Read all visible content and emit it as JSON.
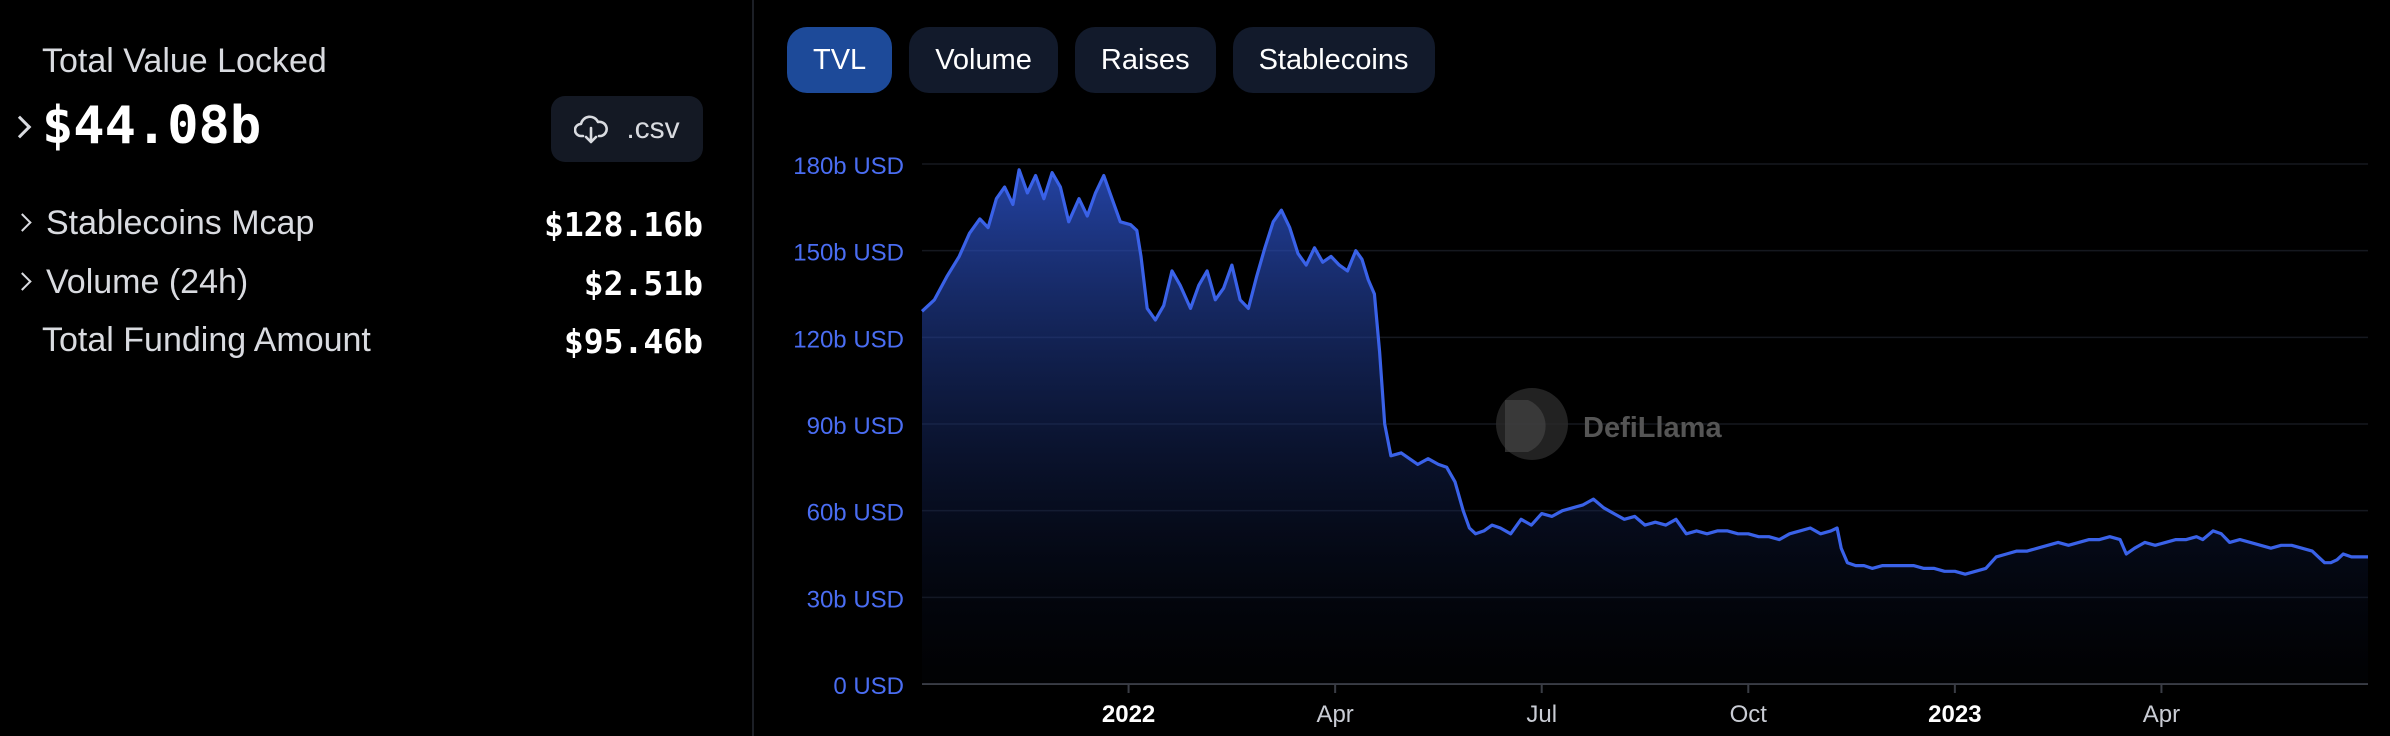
{
  "sidebar": {
    "tvl_label": "Total Value Locked",
    "tvl_value": "$44.08b",
    "csv_label": ".csv",
    "stats": [
      {
        "label": "Stablecoins Mcap",
        "value": "$128.16b",
        "expandable": true
      },
      {
        "label": "Volume (24h)",
        "value": "$2.51b",
        "expandable": true
      },
      {
        "label": "Total Funding Amount",
        "value": "$95.46b",
        "expandable": false
      }
    ]
  },
  "tabs": [
    {
      "label": "TVL",
      "active": true
    },
    {
      "label": "Volume",
      "active": false
    },
    {
      "label": "Raises",
      "active": false
    },
    {
      "label": "Stablecoins",
      "active": false
    }
  ],
  "watermark": "DefiLlama",
  "colors": {
    "line": "#3a62e8",
    "tick": "#4a6df2",
    "active_tab": "#1d4a99",
    "tab": "#121a2b"
  },
  "chart_data": {
    "type": "area",
    "ylabels": [
      "0 USD",
      "30b USD",
      "60b USD",
      "90b USD",
      "120b USD",
      "150b USD",
      "180b USD"
    ],
    "ylim": [
      0,
      180
    ],
    "xlim": [
      0,
      7000
    ],
    "xticks": [
      {
        "label": "2022",
        "x": 1000,
        "bold": true
      },
      {
        "label": "Apr",
        "x": 2000,
        "bold": false
      },
      {
        "label": "Jul",
        "x": 3000,
        "bold": false
      },
      {
        "label": "Oct",
        "x": 4000,
        "bold": false
      },
      {
        "label": "2023",
        "x": 5000,
        "bold": true
      },
      {
        "label": "Apr",
        "x": 6000,
        "bold": false
      }
    ],
    "series": [
      {
        "name": "TVL",
        "points": [
          [
            0,
            129
          ],
          [
            60,
            133
          ],
          [
            120,
            141
          ],
          [
            180,
            148
          ],
          [
            230,
            156
          ],
          [
            280,
            161
          ],
          [
            320,
            158
          ],
          [
            360,
            168
          ],
          [
            400,
            172
          ],
          [
            440,
            166
          ],
          [
            470,
            178
          ],
          [
            510,
            170
          ],
          [
            550,
            176
          ],
          [
            590,
            168
          ],
          [
            630,
            177
          ],
          [
            670,
            172
          ],
          [
            710,
            160
          ],
          [
            760,
            168
          ],
          [
            800,
            162
          ],
          [
            840,
            170
          ],
          [
            880,
            176
          ],
          [
            920,
            168
          ],
          [
            960,
            160
          ],
          [
            1010,
            159
          ],
          [
            1040,
            157
          ],
          [
            1060,
            148
          ],
          [
            1090,
            130
          ],
          [
            1130,
            126
          ],
          [
            1170,
            131
          ],
          [
            1210,
            143
          ],
          [
            1250,
            138
          ],
          [
            1300,
            130
          ],
          [
            1340,
            138
          ],
          [
            1380,
            143
          ],
          [
            1420,
            133
          ],
          [
            1460,
            137
          ],
          [
            1500,
            145
          ],
          [
            1540,
            133
          ],
          [
            1580,
            130
          ],
          [
            1620,
            141
          ],
          [
            1660,
            151
          ],
          [
            1700,
            160
          ],
          [
            1740,
            164
          ],
          [
            1780,
            158
          ],
          [
            1820,
            149
          ],
          [
            1860,
            145
          ],
          [
            1900,
            151
          ],
          [
            1940,
            146
          ],
          [
            1980,
            148
          ],
          [
            2020,
            145
          ],
          [
            2060,
            143
          ],
          [
            2100,
            150
          ],
          [
            2130,
            147
          ],
          [
            2160,
            140
          ],
          [
            2190,
            135
          ],
          [
            2215,
            115
          ],
          [
            2240,
            90
          ],
          [
            2270,
            79
          ],
          [
            2320,
            80
          ],
          [
            2360,
            78
          ],
          [
            2400,
            76
          ],
          [
            2450,
            78
          ],
          [
            2500,
            76
          ],
          [
            2540,
            75
          ],
          [
            2580,
            70
          ],
          [
            2620,
            60
          ],
          [
            2650,
            54
          ],
          [
            2680,
            52
          ],
          [
            2720,
            53
          ],
          [
            2760,
            55
          ],
          [
            2800,
            54
          ],
          [
            2850,
            52
          ],
          [
            2900,
            57
          ],
          [
            2950,
            55
          ],
          [
            3000,
            59
          ],
          [
            3050,
            58
          ],
          [
            3100,
            60
          ],
          [
            3150,
            61
          ],
          [
            3200,
            62
          ],
          [
            3250,
            64
          ],
          [
            3300,
            61
          ],
          [
            3350,
            59
          ],
          [
            3400,
            57
          ],
          [
            3450,
            58
          ],
          [
            3500,
            55
          ],
          [
            3550,
            56
          ],
          [
            3600,
            55
          ],
          [
            3650,
            57
          ],
          [
            3700,
            52
          ],
          [
            3750,
            53
          ],
          [
            3800,
            52
          ],
          [
            3850,
            53
          ],
          [
            3900,
            53
          ],
          [
            3950,
            52
          ],
          [
            4000,
            52
          ],
          [
            4050,
            51
          ],
          [
            4100,
            51
          ],
          [
            4150,
            50
          ],
          [
            4200,
            52
          ],
          [
            4250,
            53
          ],
          [
            4300,
            54
          ],
          [
            4350,
            52
          ],
          [
            4400,
            53
          ],
          [
            4430,
            54
          ],
          [
            4450,
            47
          ],
          [
            4480,
            42
          ],
          [
            4520,
            41
          ],
          [
            4560,
            41
          ],
          [
            4600,
            40
          ],
          [
            4650,
            41
          ],
          [
            4700,
            41
          ],
          [
            4750,
            41
          ],
          [
            4800,
            41
          ],
          [
            4850,
            40
          ],
          [
            4900,
            40
          ],
          [
            4950,
            39
          ],
          [
            5000,
            39
          ],
          [
            5050,
            38
          ],
          [
            5100,
            39
          ],
          [
            5150,
            40
          ],
          [
            5200,
            44
          ],
          [
            5250,
            45
          ],
          [
            5300,
            46
          ],
          [
            5350,
            46
          ],
          [
            5400,
            47
          ],
          [
            5450,
            48
          ],
          [
            5500,
            49
          ],
          [
            5550,
            48
          ],
          [
            5600,
            49
          ],
          [
            5650,
            50
          ],
          [
            5700,
            50
          ],
          [
            5750,
            51
          ],
          [
            5800,
            50
          ],
          [
            5830,
            45
          ],
          [
            5870,
            47
          ],
          [
            5920,
            49
          ],
          [
            5970,
            48
          ],
          [
            6020,
            49
          ],
          [
            6070,
            50
          ],
          [
            6120,
            50
          ],
          [
            6170,
            51
          ],
          [
            6200,
            50
          ],
          [
            6250,
            53
          ],
          [
            6290,
            52
          ],
          [
            6330,
            49
          ],
          [
            6380,
            50
          ],
          [
            6430,
            49
          ],
          [
            6480,
            48
          ],
          [
            6530,
            47
          ],
          [
            6580,
            48
          ],
          [
            6630,
            48
          ],
          [
            6680,
            47
          ],
          [
            6730,
            46
          ],
          [
            6760,
            44
          ],
          [
            6790,
            42
          ],
          [
            6820,
            42
          ],
          [
            6850,
            43
          ],
          [
            6880,
            45
          ],
          [
            6920,
            44
          ],
          [
            6960,
            44
          ],
          [
            7000,
            44
          ]
        ]
      }
    ]
  }
}
